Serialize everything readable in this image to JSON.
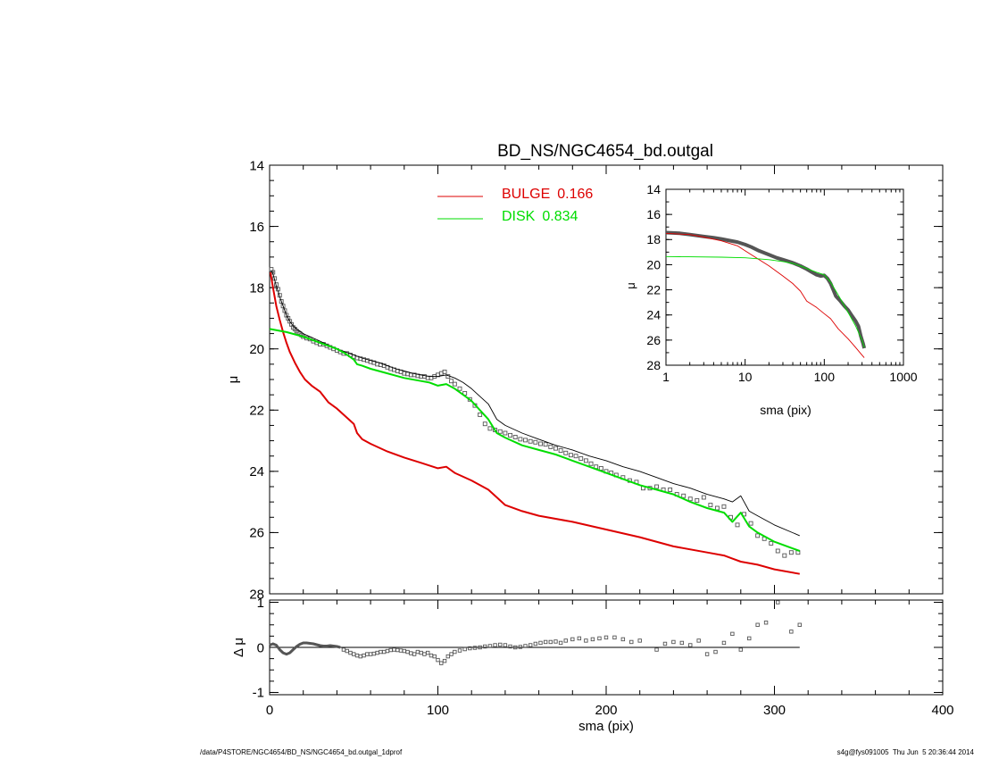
{
  "footer": {
    "path": "/data/P4STORE/NGC4654/BD_NS/NGC4654_bd.outgal_1dprof",
    "stamp": "s4g@fys091005  Thu Jun  5 20:36:44 2014"
  },
  "colors": {
    "observed": "#555555",
    "bulge": "#dd0000",
    "disk": "#00dd00",
    "model": "#000000",
    "residual": "#000000"
  },
  "chart_data": [
    {
      "id": "main",
      "type": "line",
      "title": "BD_NS/NGC4654_bd.outgal",
      "xlabel": "",
      "ylabel": "μ",
      "xlim": [
        0,
        400
      ],
      "ylim": [
        28,
        14
      ],
      "y_inverted": true,
      "xticks": [
        0,
        100,
        200,
        300,
        400
      ],
      "yticks": [
        14,
        16,
        18,
        20,
        22,
        24,
        26,
        28
      ],
      "legend": {
        "placement": "top-center",
        "entries": [
          {
            "label": "BULGE",
            "value": "0.166",
            "color": "#dd0000"
          },
          {
            "label": "DISK",
            "value": "0.834",
            "color": "#00dd00"
          }
        ]
      },
      "series": [
        {
          "key": "observed",
          "style": "squares",
          "x": [
            1,
            2,
            3,
            4,
            5,
            6,
            7,
            8,
            9,
            10,
            11,
            12,
            13,
            14,
            15,
            16,
            17,
            18,
            19,
            20,
            22,
            24,
            26,
            28,
            30,
            32,
            34,
            36,
            38,
            40,
            42,
            44,
            46,
            48,
            50,
            52,
            54,
            56,
            58,
            60,
            62,
            64,
            66,
            68,
            70,
            72,
            74,
            76,
            78,
            80,
            82,
            84,
            86,
            88,
            90,
            92,
            94,
            96,
            98,
            100,
            102,
            104,
            106,
            108,
            110,
            113,
            116,
            119,
            122,
            125,
            128,
            131,
            134,
            137,
            140,
            143,
            146,
            149,
            152,
            155,
            158,
            161,
            164,
            167,
            170,
            173,
            176,
            179,
            182,
            185,
            188,
            191,
            194,
            197,
            200,
            203,
            206,
            210,
            214,
            218,
            222,
            226,
            230,
            234,
            238,
            242,
            246,
            250,
            254,
            258,
            262,
            266,
            270,
            274,
            278,
            282,
            286,
            290,
            294,
            298,
            302,
            306,
            310,
            314
          ],
          "y": [
            17.4,
            17.5,
            17.7,
            17.9,
            18.05,
            18.25,
            18.45,
            18.6,
            18.75,
            18.9,
            19.0,
            19.1,
            19.2,
            19.3,
            19.35,
            19.42,
            19.47,
            19.5,
            19.55,
            19.6,
            19.65,
            19.68,
            19.75,
            19.8,
            19.85,
            19.85,
            19.9,
            19.95,
            20.0,
            20.05,
            20.1,
            20.15,
            20.15,
            20.2,
            20.25,
            20.3,
            20.32,
            20.35,
            20.38,
            20.42,
            20.45,
            20.5,
            20.52,
            20.55,
            20.6,
            20.65,
            20.68,
            20.72,
            20.75,
            20.8,
            20.82,
            20.85,
            20.85,
            20.88,
            20.9,
            20.9,
            20.95,
            20.95,
            20.9,
            20.85,
            20.8,
            20.75,
            20.9,
            21.05,
            21.15,
            21.3,
            21.45,
            21.65,
            21.85,
            22.15,
            22.45,
            22.6,
            22.65,
            22.7,
            22.75,
            22.82,
            22.88,
            22.95,
            22.98,
            23.02,
            23.05,
            23.1,
            23.12,
            23.2,
            23.25,
            23.32,
            23.4,
            23.47,
            23.5,
            23.58,
            23.65,
            23.75,
            23.85,
            23.9,
            24.0,
            24.05,
            24.12,
            24.2,
            24.3,
            24.35,
            24.55,
            24.55,
            24.5,
            24.6,
            24.6,
            24.75,
            24.8,
            24.9,
            24.95,
            24.85,
            25.1,
            25.2,
            25.15,
            25.5,
            25.75,
            25.4,
            25.7,
            26.1,
            26.2,
            26.35,
            26.6,
            26.75,
            26.65,
            26.65
          ]
        },
        {
          "key": "model",
          "style": "thin-line",
          "x": [
            1,
            2,
            3,
            4,
            5,
            6,
            8,
            10,
            12,
            14,
            16,
            18,
            20,
            24,
            28,
            32,
            36,
            40,
            45,
            50,
            55,
            60,
            65,
            70,
            75,
            80,
            85,
            90,
            95,
            100,
            105,
            110,
            115,
            120,
            125,
            130,
            135,
            140,
            150,
            160,
            170,
            180,
            190,
            200,
            210,
            220,
            230,
            240,
            250,
            260,
            270,
            275,
            280,
            285,
            290,
            300,
            315
          ],
          "y": [
            17.45,
            17.55,
            17.75,
            17.95,
            18.1,
            18.3,
            18.6,
            18.9,
            19.1,
            19.25,
            19.35,
            19.42,
            19.5,
            19.6,
            19.7,
            19.8,
            19.9,
            20.0,
            20.1,
            20.2,
            20.3,
            20.38,
            20.45,
            20.55,
            20.65,
            20.72,
            20.8,
            20.85,
            20.9,
            20.9,
            20.85,
            20.95,
            21.1,
            21.3,
            21.55,
            21.8,
            22.3,
            22.5,
            22.75,
            22.95,
            23.15,
            23.3,
            23.5,
            23.65,
            23.85,
            24.0,
            24.2,
            24.4,
            24.55,
            24.75,
            24.9,
            25.0,
            24.8,
            25.3,
            25.45,
            25.75,
            26.1
          ]
        },
        {
          "key": "bulge",
          "style": "thick-line",
          "x": [
            0.5,
            2,
            4,
            6,
            8,
            10,
            12,
            15,
            18,
            21,
            25,
            30,
            35,
            40,
            45,
            50,
            52,
            55,
            60,
            70,
            80,
            90,
            100,
            105,
            110,
            120,
            130,
            135,
            140,
            150,
            160,
            180,
            200,
            220,
            240,
            260,
            270,
            275,
            280,
            290,
            300,
            315
          ],
          "y": [
            17.5,
            18.0,
            18.6,
            19.05,
            19.45,
            19.8,
            20.1,
            20.45,
            20.75,
            21.0,
            21.2,
            21.4,
            21.75,
            21.95,
            22.2,
            22.45,
            22.75,
            22.95,
            23.1,
            23.35,
            23.55,
            23.72,
            23.9,
            23.85,
            24.05,
            24.3,
            24.6,
            24.85,
            25.1,
            25.3,
            25.45,
            25.65,
            25.9,
            26.15,
            26.45,
            26.65,
            26.75,
            26.85,
            26.95,
            27.05,
            27.2,
            27.35
          ]
        },
        {
          "key": "disk",
          "style": "thick-line",
          "x": [
            0,
            10,
            20,
            30,
            40,
            45,
            50,
            52,
            55,
            60,
            70,
            80,
            90,
            95,
            100,
            105,
            110,
            115,
            120,
            125,
            130,
            135,
            140,
            150,
            160,
            170,
            180,
            190,
            200,
            210,
            220,
            230,
            240,
            250,
            260,
            270,
            275,
            280,
            285,
            290,
            300,
            315
          ],
          "y": [
            19.35,
            19.45,
            19.6,
            19.8,
            20.0,
            20.15,
            20.35,
            20.5,
            20.55,
            20.65,
            20.8,
            20.95,
            21.05,
            21.1,
            21.2,
            21.15,
            21.3,
            21.5,
            21.7,
            22.0,
            22.3,
            22.75,
            22.9,
            23.15,
            23.3,
            23.45,
            23.65,
            23.85,
            24.05,
            24.25,
            24.45,
            24.6,
            24.75,
            25.0,
            25.2,
            25.35,
            25.65,
            25.35,
            25.8,
            26.0,
            26.3,
            26.6
          ]
        }
      ]
    },
    {
      "id": "residual",
      "type": "scatter",
      "xlabel": "sma (pix)",
      "ylabel": "Δ μ",
      "xlim": [
        0,
        400
      ],
      "ylim": [
        -1.05,
        1.05
      ],
      "xticks": [
        0,
        100,
        200,
        300,
        400
      ],
      "yticks": [
        -1,
        0,
        1
      ],
      "reference_line": 0,
      "series": [
        {
          "key": "residual_dense",
          "style": "thick-line",
          "x": [
            0,
            2,
            4,
            6,
            8,
            10,
            12,
            14,
            16,
            18,
            20,
            22,
            24,
            26,
            28,
            30,
            32,
            34,
            36,
            38,
            40,
            42
          ],
          "y": [
            0.05,
            0.08,
            0.05,
            -0.05,
            -0.12,
            -0.15,
            -0.12,
            -0.05,
            0.02,
            0.07,
            0.1,
            0.1,
            0.09,
            0.08,
            0.06,
            0.04,
            0.03,
            0.03,
            0.04,
            0.03,
            0.02,
            0.0
          ]
        },
        {
          "key": "residual_points",
          "style": "squares",
          "x": [
            44,
            46,
            48,
            50,
            52,
            54,
            56,
            58,
            60,
            62,
            64,
            66,
            68,
            70,
            72,
            74,
            76,
            78,
            80,
            82,
            84,
            86,
            88,
            90,
            92,
            94,
            96,
            98,
            100,
            102,
            104,
            106,
            108,
            110,
            113,
            116,
            119,
            122,
            125,
            128,
            131,
            134,
            137,
            140,
            143,
            146,
            149,
            152,
            155,
            158,
            161,
            164,
            167,
            170,
            173,
            176,
            180,
            184,
            188,
            192,
            196,
            200,
            205,
            210,
            215,
            220,
            230,
            235,
            240,
            245,
            250,
            255,
            260,
            265,
            270,
            275,
            280,
            285,
            290,
            295,
            302,
            310,
            315
          ],
          "y": [
            -0.05,
            -0.08,
            -0.12,
            -0.15,
            -0.18,
            -0.2,
            -0.18,
            -0.15,
            -0.15,
            -0.14,
            -0.12,
            -0.1,
            -0.1,
            -0.08,
            -0.06,
            -0.05,
            -0.06,
            -0.07,
            -0.08,
            -0.1,
            -0.13,
            -0.15,
            -0.1,
            -0.12,
            -0.15,
            -0.12,
            -0.18,
            -0.2,
            -0.28,
            -0.35,
            -0.3,
            -0.2,
            -0.15,
            -0.1,
            -0.07,
            -0.04,
            -0.02,
            -0.01,
            0.0,
            0.02,
            0.03,
            0.05,
            0.06,
            0.05,
            0.02,
            0.0,
            0.01,
            0.03,
            0.05,
            0.08,
            0.1,
            0.12,
            0.12,
            0.13,
            0.1,
            0.15,
            0.18,
            0.2,
            0.15,
            0.18,
            0.2,
            0.22,
            0.22,
            0.18,
            0.12,
            0.15,
            -0.05,
            0.08,
            0.12,
            0.1,
            0.05,
            0.15,
            -0.15,
            -0.1,
            0.1,
            0.3,
            -0.05,
            0.2,
            0.5,
            0.55,
            1.0,
            0.35,
            0.5
          ]
        }
      ]
    },
    {
      "id": "inset",
      "type": "line",
      "xlabel": "sma (pix)",
      "ylabel": "μ",
      "x_scale": "log",
      "xlim": [
        1,
        1000
      ],
      "ylim": [
        28,
        14
      ],
      "y_inverted": true,
      "xticks": [
        1,
        10,
        100,
        1000
      ],
      "xtick_labels": [
        "1",
        "10",
        "100",
        "1000"
      ],
      "yticks": [
        14,
        16,
        18,
        20,
        22,
        24,
        26,
        28
      ],
      "series": [
        {
          "key": "observed",
          "style": "thick-line",
          "x": [
            1,
            1.5,
            2,
            3,
            4,
            5,
            6,
            8,
            10,
            12,
            15,
            20,
            25,
            30,
            40,
            50,
            60,
            70,
            80,
            90,
            100,
            110,
            120,
            130,
            140,
            160,
            180,
            200,
            220,
            250,
            270,
            290,
            310,
            320
          ],
          "y": [
            17.45,
            17.5,
            17.6,
            17.75,
            17.85,
            17.95,
            18.05,
            18.2,
            18.4,
            18.6,
            18.9,
            19.2,
            19.45,
            19.6,
            19.85,
            20.1,
            20.35,
            20.6,
            20.8,
            20.9,
            20.85,
            21.1,
            21.5,
            22.0,
            22.5,
            22.9,
            23.3,
            23.6,
            24.0,
            24.5,
            24.9,
            25.7,
            26.3,
            26.65
          ]
        },
        {
          "key": "bulge",
          "style": "thin-line",
          "x": [
            1,
            2,
            3,
            5,
            8,
            10,
            15,
            20,
            30,
            40,
            50,
            60,
            80,
            100,
            120,
            150,
            200,
            250,
            300,
            320
          ],
          "y": [
            17.5,
            17.6,
            17.8,
            18.1,
            18.5,
            18.9,
            19.6,
            20.1,
            20.9,
            21.5,
            22.1,
            22.9,
            23.4,
            23.9,
            24.3,
            25.1,
            25.9,
            26.6,
            27.2,
            27.4
          ]
        },
        {
          "key": "disk",
          "style": "thin-line",
          "x": [
            1,
            5,
            10,
            20,
            30,
            40,
            50,
            60,
            80,
            100,
            120,
            150,
            200,
            250,
            300,
            320
          ],
          "y": [
            19.35,
            19.4,
            19.45,
            19.6,
            19.75,
            19.9,
            20.1,
            20.3,
            20.6,
            20.8,
            21.4,
            22.4,
            23.8,
            24.9,
            26.0,
            26.6
          ]
        }
      ]
    }
  ]
}
